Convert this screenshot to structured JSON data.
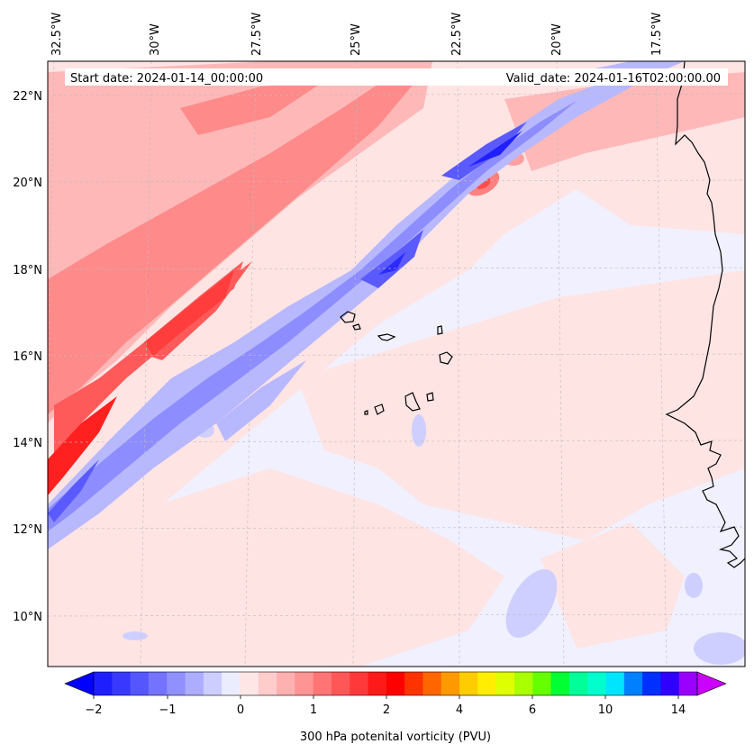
{
  "header": {
    "start_date": "Start date: 2024-01-14_00:00:00",
    "valid_date": "Valid_date: 2024-01-16T02:00:00.00"
  },
  "map": {
    "lon_labels": [
      "32.5°W",
      "30°W",
      "27.5°W",
      "25°W",
      "22.5°W",
      "20°W",
      "17.5°W"
    ],
    "lat_labels": [
      "22°N",
      "20°N",
      "18°N",
      "16°N",
      "14°N",
      "12°N",
      "10°N"
    ],
    "lon_range": [
      -32.5,
      -15.0
    ],
    "lat_range": [
      8.9,
      22.8
    ],
    "colors": {
      "background": "#f0f0ff",
      "weak_positive": "#ffe4e4",
      "pos_1": "#ffb3b3",
      "pos_2": "#ff8080",
      "pos_3": "#ff3b3b",
      "neg_1": "#d0d0ff",
      "neg_2": "#9e9eff",
      "neg_3": "#4d4dff",
      "neg_4": "#1010ff",
      "coast": "#000000"
    }
  },
  "colorbar": {
    "label": "300 hPa potenital vorticity (PVU)",
    "ticks": [
      "−2",
      "−1",
      "0",
      "1",
      "2",
      "4",
      "6",
      "10",
      "14"
    ],
    "colors": [
      "#1e1eff",
      "#3838ff",
      "#5656ff",
      "#7373ff",
      "#9090ff",
      "#adadff",
      "#cdcdff",
      "#ececff",
      "#ffe6e6",
      "#ffcccc",
      "#ffb0b0",
      "#ff9494",
      "#ff7575",
      "#ff5757",
      "#ff3939",
      "#ff1a1a",
      "#ff0000",
      "#ff3300",
      "#ff6600",
      "#ff9900",
      "#ffcc00",
      "#ffee00",
      "#ddff00",
      "#aaff00",
      "#66ff00",
      "#00ff33",
      "#00ff99",
      "#00ffcc",
      "#00e5ff",
      "#0080ff",
      "#0030ff",
      "#3000ff",
      "#9a00ff"
    ],
    "under_color": "#0000ff",
    "over_color": "#cc00ff"
  }
}
